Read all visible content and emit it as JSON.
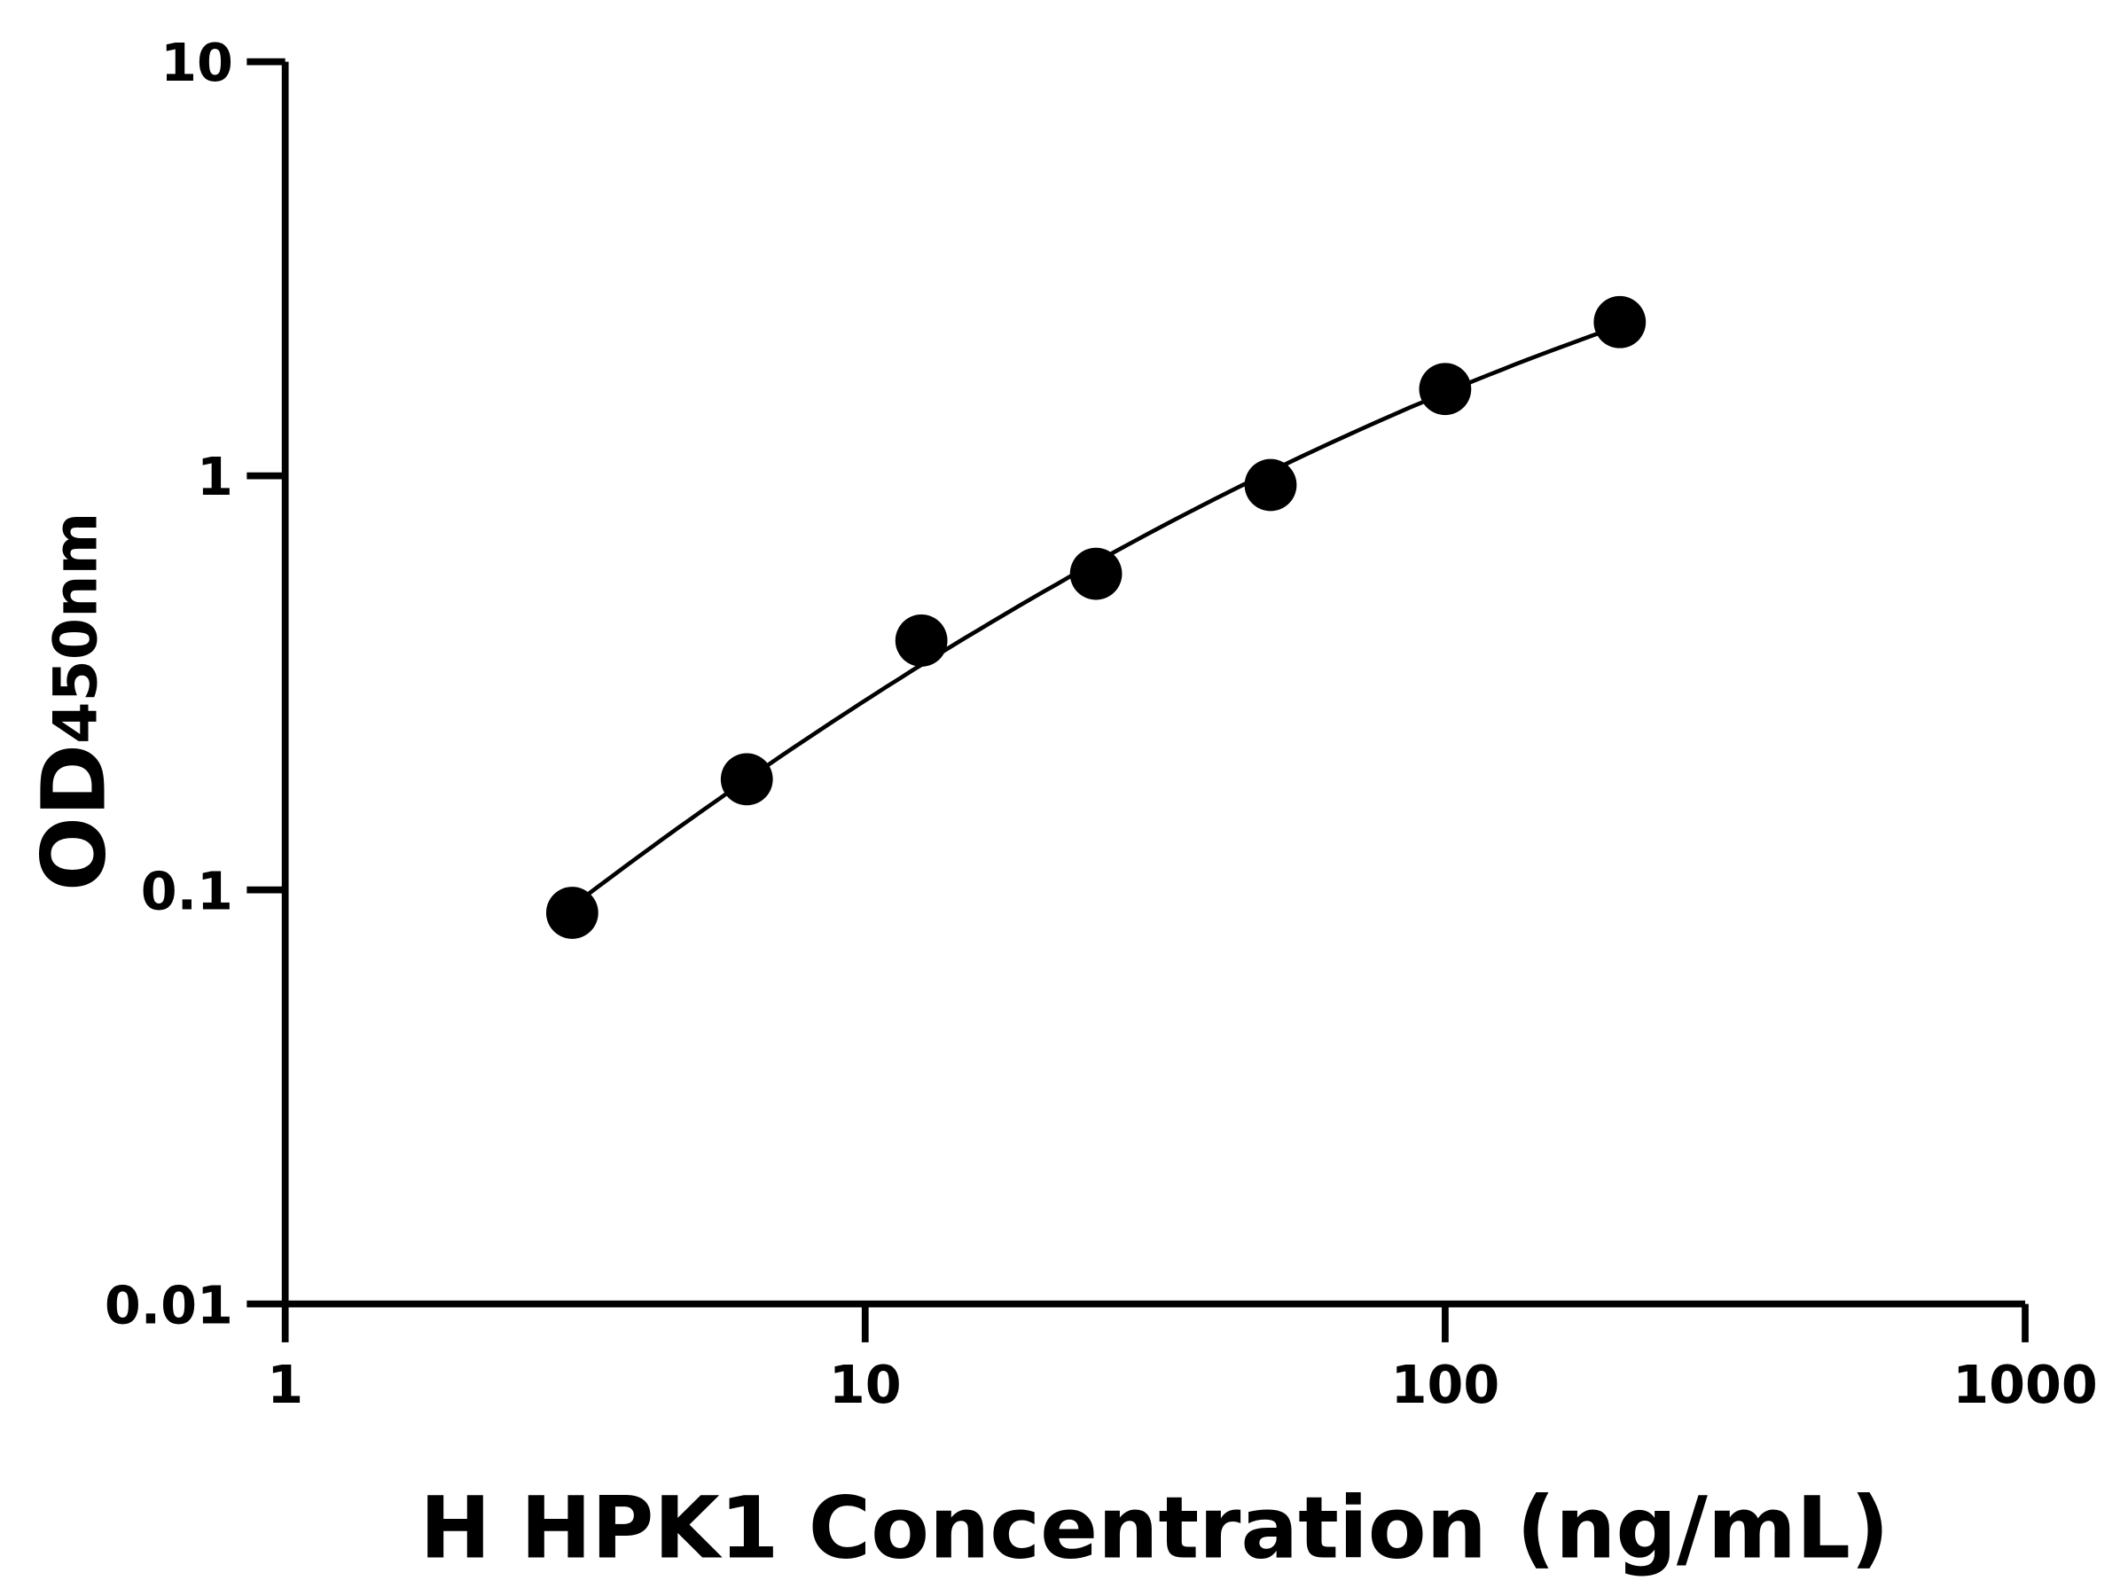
{
  "chart_data": {
    "type": "scatter",
    "title": "",
    "xlabel": "H HPK1 Concentration (ng/mL)",
    "ylabel_main": "OD",
    "ylabel_sub": "450nm",
    "x_scale": "log",
    "y_scale": "log",
    "xlim": [
      1,
      1000
    ],
    "ylim": [
      0.01,
      10
    ],
    "x_ticks": [
      "1",
      "10",
      "100",
      "1000"
    ],
    "y_ticks": [
      "0.01",
      "0.1",
      "1",
      "10"
    ],
    "grid": false,
    "legend": "none",
    "fit_line": "smooth curve through points",
    "colors": {
      "points": "#000000",
      "line": "#000000",
      "axes": "#000000"
    },
    "series": [
      {
        "x": [
          3.125,
          6.25,
          12.5,
          25,
          50,
          100,
          200
        ],
        "y": [
          0.088,
          0.185,
          0.4,
          0.58,
          0.95,
          1.62,
          2.35
        ]
      }
    ]
  }
}
